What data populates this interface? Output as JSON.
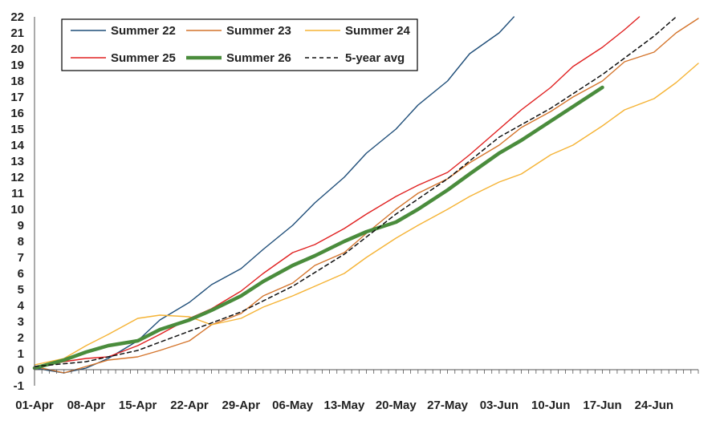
{
  "chart_data": {
    "type": "line",
    "title": "",
    "xlabel": "",
    "ylabel": "",
    "ylim": [
      -1,
      22
    ],
    "y_ticks": [
      -1,
      0,
      1,
      2,
      3,
      4,
      5,
      6,
      7,
      8,
      9,
      10,
      11,
      12,
      13,
      14,
      15,
      16,
      17,
      18,
      19,
      20,
      21,
      22
    ],
    "x_domain_labels": [
      "01-Apr",
      "08-Apr",
      "15-Apr",
      "22-Apr",
      "29-Apr",
      "06-May",
      "13-May",
      "20-May",
      "27-May",
      "03-Jun",
      "10-Jun",
      "17-Jun",
      "24-Jun"
    ],
    "x_range": [
      "01-Apr",
      "30-Jun"
    ],
    "grid": false,
    "legend_position": "top-left",
    "series": [
      {
        "name": "Summer 22",
        "color": "#1f4e79",
        "width": 1.4,
        "dash": "",
        "points": [
          [
            "01-Apr",
            0.1
          ],
          [
            "05-Apr",
            -0.2
          ],
          [
            "08-Apr",
            0.1
          ],
          [
            "11-Apr",
            0.7
          ],
          [
            "15-Apr",
            1.8
          ],
          [
            "18-Apr",
            3.1
          ],
          [
            "22-Apr",
            4.2
          ],
          [
            "25-Apr",
            5.3
          ],
          [
            "29-Apr",
            6.3
          ],
          [
            "02-May",
            7.5
          ],
          [
            "06-May",
            9.0
          ],
          [
            "09-May",
            10.4
          ],
          [
            "13-May",
            12.0
          ],
          [
            "16-May",
            13.5
          ],
          [
            "20-May",
            15.0
          ],
          [
            "23-May",
            16.5
          ],
          [
            "27-May",
            18.0
          ],
          [
            "30-May",
            19.7
          ],
          [
            "03-Jun",
            21.0
          ],
          [
            "05-Jun",
            22.0
          ]
        ]
      },
      {
        "name": "Summer 23",
        "color": "#d4742b",
        "width": 1.4,
        "dash": "",
        "points": [
          [
            "01-Apr",
            0.2
          ],
          [
            "05-Apr",
            -0.2
          ],
          [
            "08-Apr",
            0.2
          ],
          [
            "11-Apr",
            0.6
          ],
          [
            "15-Apr",
            0.8
          ],
          [
            "18-Apr",
            1.2
          ],
          [
            "22-Apr",
            1.8
          ],
          [
            "25-Apr",
            2.8
          ],
          [
            "29-Apr",
            3.5
          ],
          [
            "02-May",
            4.6
          ],
          [
            "06-May",
            5.4
          ],
          [
            "09-May",
            6.5
          ],
          [
            "13-May",
            7.3
          ],
          [
            "16-May",
            8.5
          ],
          [
            "20-May",
            10.0
          ],
          [
            "23-May",
            11.0
          ],
          [
            "27-May",
            11.9
          ],
          [
            "30-May",
            12.9
          ],
          [
            "03-Jun",
            14.0
          ],
          [
            "06-Jun",
            15.1
          ],
          [
            "10-Jun",
            16.1
          ],
          [
            "13-Jun",
            17.0
          ],
          [
            "17-Jun",
            18.0
          ],
          [
            "20-Jun",
            19.2
          ],
          [
            "24-Jun",
            19.8
          ],
          [
            "27-Jun",
            21.0
          ],
          [
            "30-Jun",
            21.9
          ]
        ]
      },
      {
        "name": "Summer 24",
        "color": "#f5b335",
        "width": 1.4,
        "dash": "",
        "points": [
          [
            "01-Apr",
            0.3
          ],
          [
            "05-Apr",
            0.7
          ],
          [
            "08-Apr",
            1.5
          ],
          [
            "11-Apr",
            2.2
          ],
          [
            "15-Apr",
            3.2
          ],
          [
            "18-Apr",
            3.4
          ],
          [
            "22-Apr",
            3.3
          ],
          [
            "25-Apr",
            2.8
          ],
          [
            "29-Apr",
            3.2
          ],
          [
            "02-May",
            3.9
          ],
          [
            "06-May",
            4.6
          ],
          [
            "09-May",
            5.2
          ],
          [
            "13-May",
            6.0
          ],
          [
            "16-May",
            7.0
          ],
          [
            "20-May",
            8.2
          ],
          [
            "23-May",
            9.0
          ],
          [
            "27-May",
            10.0
          ],
          [
            "30-May",
            10.8
          ],
          [
            "03-Jun",
            11.7
          ],
          [
            "06-Jun",
            12.2
          ],
          [
            "10-Jun",
            13.4
          ],
          [
            "13-Jun",
            14.0
          ],
          [
            "17-Jun",
            15.2
          ],
          [
            "20-Jun",
            16.2
          ],
          [
            "24-Jun",
            16.9
          ],
          [
            "27-Jun",
            17.9
          ],
          [
            "30-Jun",
            19.1
          ]
        ]
      },
      {
        "name": "Summer 25",
        "color": "#e02020",
        "width": 1.4,
        "dash": "",
        "points": [
          [
            "01-Apr",
            0.1
          ],
          [
            "05-Apr",
            0.5
          ],
          [
            "08-Apr",
            0.7
          ],
          [
            "11-Apr",
            0.8
          ],
          [
            "15-Apr",
            1.5
          ],
          [
            "18-Apr",
            2.2
          ],
          [
            "22-Apr",
            3.2
          ],
          [
            "25-Apr",
            3.8
          ],
          [
            "29-Apr",
            4.9
          ],
          [
            "02-May",
            6.0
          ],
          [
            "06-May",
            7.3
          ],
          [
            "09-May",
            7.8
          ],
          [
            "13-May",
            8.8
          ],
          [
            "16-May",
            9.7
          ],
          [
            "20-May",
            10.8
          ],
          [
            "23-May",
            11.5
          ],
          [
            "27-May",
            12.3
          ],
          [
            "30-May",
            13.4
          ],
          [
            "03-Jun",
            15.0
          ],
          [
            "06-Jun",
            16.2
          ],
          [
            "10-Jun",
            17.6
          ],
          [
            "13-Jun",
            18.9
          ],
          [
            "17-Jun",
            20.1
          ],
          [
            "20-Jun",
            21.2
          ],
          [
            "22-Jun",
            22.0
          ]
        ]
      },
      {
        "name": "Summer 26",
        "color": "#4a8c3c",
        "width": 4.5,
        "dash": "",
        "points": [
          [
            "01-Apr",
            0.1
          ],
          [
            "05-Apr",
            0.6
          ],
          [
            "08-Apr",
            1.1
          ],
          [
            "11-Apr",
            1.5
          ],
          [
            "15-Apr",
            1.8
          ],
          [
            "18-Apr",
            2.5
          ],
          [
            "22-Apr",
            3.1
          ],
          [
            "25-Apr",
            3.7
          ],
          [
            "29-Apr",
            4.6
          ],
          [
            "02-May",
            5.5
          ],
          [
            "06-May",
            6.5
          ],
          [
            "09-May",
            7.1
          ],
          [
            "13-May",
            8.0
          ],
          [
            "16-May",
            8.6
          ],
          [
            "20-May",
            9.2
          ],
          [
            "23-May",
            10.0
          ],
          [
            "27-May",
            11.2
          ],
          [
            "30-May",
            12.2
          ],
          [
            "03-Jun",
            13.5
          ],
          [
            "06-Jun",
            14.3
          ],
          [
            "10-Jun",
            15.5
          ],
          [
            "13-Jun",
            16.4
          ],
          [
            "17-Jun",
            17.6
          ]
        ]
      },
      {
        "name": "5-year avg",
        "color": "#111111",
        "width": 1.5,
        "dash": "5,4",
        "points": [
          [
            "01-Apr",
            0.2
          ],
          [
            "08-Apr",
            0.5
          ],
          [
            "15-Apr",
            1.2
          ],
          [
            "22-Apr",
            2.4
          ],
          [
            "29-Apr",
            3.6
          ],
          [
            "06-May",
            5.2
          ],
          [
            "13-May",
            7.2
          ],
          [
            "20-May",
            9.7
          ],
          [
            "27-May",
            11.9
          ],
          [
            "03-Jun",
            14.5
          ],
          [
            "10-Jun",
            16.3
          ],
          [
            "17-Jun",
            18.4
          ],
          [
            "24-Jun",
            20.8
          ],
          [
            "27-Jun",
            22.0
          ]
        ]
      }
    ]
  },
  "legend": {
    "items": [
      {
        "label": "Summer 22",
        "color": "#1f4e79",
        "width": 1.4,
        "dash": ""
      },
      {
        "label": "Summer 23",
        "color": "#d4742b",
        "width": 1.4,
        "dash": ""
      },
      {
        "label": "Summer 24",
        "color": "#f5b335",
        "width": 1.4,
        "dash": ""
      },
      {
        "label": "Summer 25",
        "color": "#e02020",
        "width": 1.4,
        "dash": ""
      },
      {
        "label": "Summer 26",
        "color": "#4a8c3c",
        "width": 4.5,
        "dash": ""
      },
      {
        "label": "5-year avg",
        "color": "#111111",
        "width": 1.5,
        "dash": "5,4"
      }
    ]
  }
}
